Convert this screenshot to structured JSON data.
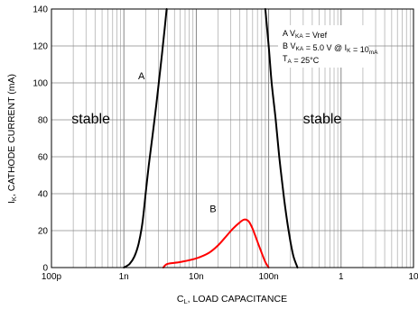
{
  "chart_data": {
    "type": "line",
    "x_scale": "log",
    "xlim": [
      1e-10,
      1e-05
    ],
    "ylim": [
      0,
      140
    ],
    "x_ticks": [
      {
        "value": 1e-10,
        "label": "100p"
      },
      {
        "value": 1e-09,
        "label": "1n"
      },
      {
        "value": 1e-08,
        "label": "10n"
      },
      {
        "value": 1e-07,
        "label": "100n"
      },
      {
        "value": 1e-06,
        "label": "1"
      },
      {
        "value": 1e-05,
        "label": "10"
      }
    ],
    "y_ticks": [
      0,
      20,
      40,
      60,
      80,
      100,
      120,
      140
    ],
    "grid": true,
    "ylabel": {
      "main": "I",
      "sub": "K",
      "rest": ", CATHODE CURRENT (mA)"
    },
    "xlabel": {
      "main": "C",
      "sub": "L",
      "rest": ", LOAD CAPACITANCE"
    },
    "region_labels": [
      {
        "text": "stable",
        "x": 3.5e-10,
        "y": 78
      },
      {
        "text": "stable",
        "x": 5.5e-07,
        "y": 78
      }
    ],
    "legend": {
      "placement": "top-right",
      "lines": [
        [
          {
            "t": "A V"
          },
          {
            "t": "KA",
            "sub": true
          },
          {
            "t": " = Vref"
          }
        ],
        [
          {
            "t": "B V"
          },
          {
            "t": "KA",
            "sub": true
          },
          {
            "t": " = 5.0 V @ I"
          },
          {
            "t": "K",
            "sub": true
          },
          {
            "t": " = 10"
          },
          {
            "t": "mA",
            "sub": true
          }
        ],
        [
          {
            "t": "T"
          },
          {
            "t": "A",
            "sub": true
          },
          {
            "t": " = 25°C"
          }
        ]
      ]
    },
    "series": [
      {
        "name": "A",
        "color": "#000000",
        "label_at": {
          "x": 1.75e-09,
          "y": 102
        },
        "x": [
          1e-09,
          1.2e-09,
          1.4e-09,
          1.6e-09,
          1.8e-09,
          2e-09,
          2.2e-09,
          2.5e-09,
          2.8e-09,
          3.2e-09,
          3.5e-09,
          3.9e-09
        ],
        "y": [
          0,
          2,
          6,
          13,
          24,
          40,
          55,
          72,
          88,
          108,
          122,
          140
        ]
      },
      {
        "name": "A",
        "color": "#000000",
        "x": [
          9e-08,
          1e-07,
          1.1e-07,
          1.25e-07,
          1.4e-07,
          1.6e-07,
          1.8e-07,
          2e-07,
          2.2e-07,
          2.5e-07
        ],
        "y": [
          140,
          120,
          100,
          80,
          60,
          40,
          25,
          14,
          6,
          0
        ]
      },
      {
        "name": "B",
        "color": "#ff0000",
        "label_at": {
          "x": 1.7e-08,
          "y": 30
        },
        "x": [
          3.5e-09,
          4e-09,
          6e-09,
          1e-08,
          1.5e-08,
          2e-08,
          2.6e-08,
          3.2e-08,
          4e-08,
          4.6e-08,
          5.3e-08,
          6e-08,
          7e-08,
          8e-08,
          9e-08,
          1e-07
        ],
        "y": [
          0,
          2,
          3,
          5,
          8,
          12,
          17,
          21,
          24.5,
          26,
          25,
          21,
          14,
          8,
          3,
          0
        ]
      }
    ]
  }
}
